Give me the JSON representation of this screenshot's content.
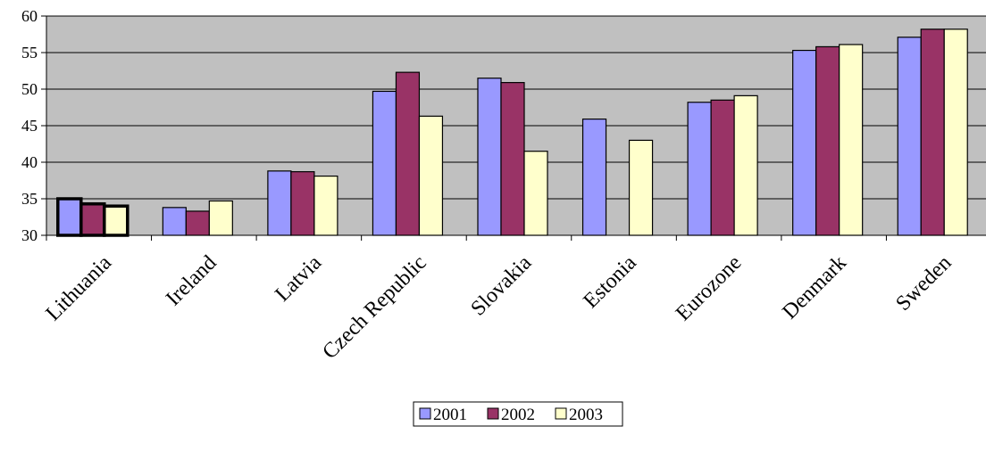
{
  "chart_data": {
    "type": "bar",
    "categories": [
      "Lithuania",
      "Ireland",
      "Latvia",
      "Czech Republic",
      "Slovakia",
      "Estonia",
      "Eurozone",
      "Denmark",
      "Sweden"
    ],
    "series": [
      {
        "name": "2001",
        "color": "#9999ff",
        "values": [
          35.0,
          33.8,
          38.8,
          49.7,
          51.5,
          45.9,
          48.2,
          55.3,
          57.1
        ]
      },
      {
        "name": "2002",
        "color": "#993366",
        "values": [
          34.3,
          33.3,
          38.7,
          52.3,
          50.9,
          null,
          48.5,
          55.8,
          58.2
        ]
      },
      {
        "name": "2003",
        "color": "#ffffcc",
        "values": [
          34.0,
          34.7,
          38.1,
          46.3,
          41.5,
          43.0,
          49.1,
          56.1,
          58.2
        ]
      }
    ],
    "highlighted_category": "Lithuania",
    "ylim": [
      30,
      60
    ],
    "yticks": [
      "30",
      "35",
      "40",
      "45",
      "50",
      "55",
      "60"
    ],
    "plot_background": "#c0c0c0",
    "grid": true,
    "legend_position": "bottom-center",
    "title": "",
    "xlabel": "",
    "ylabel": ""
  }
}
